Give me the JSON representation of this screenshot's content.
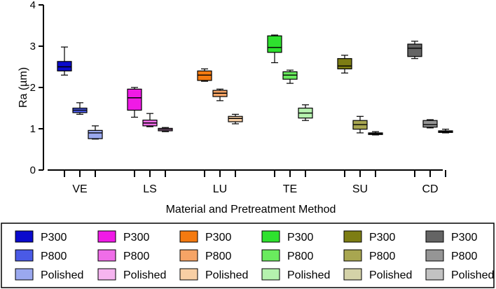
{
  "chart_data": {
    "type": "boxplot",
    "ylabel": "Ra (µm)",
    "xlabel": "Material and Pretreatment Method",
    "ylim": [
      0,
      4
    ],
    "yticks": [
      0,
      1,
      2,
      3,
      4
    ],
    "grid": false,
    "legend_position": "bottom",
    "groups": [
      {
        "label": "VE",
        "boxes": [
          {
            "series": "P300",
            "min": 2.3,
            "q1": 2.4,
            "median": 2.5,
            "q3": 2.63,
            "max": 2.98,
            "color": "#0a0acd"
          },
          {
            "series": "P800",
            "min": 1.35,
            "q1": 1.39,
            "median": 1.45,
            "q3": 1.5,
            "max": 1.63,
            "color": "#4a5ae6"
          },
          {
            "series": "Polished",
            "min": 0.75,
            "q1": 0.76,
            "median": 0.9,
            "q3": 0.96,
            "max": 1.07,
            "color": "#9aa8ef"
          }
        ]
      },
      {
        "label": "LS",
        "boxes": [
          {
            "series": "P300",
            "min": 1.28,
            "q1": 1.45,
            "median": 1.75,
            "q3": 1.96,
            "max": 2.0,
            "color": "#f01ae6"
          },
          {
            "series": "P800",
            "min": 1.05,
            "q1": 1.07,
            "median": 1.14,
            "q3": 1.21,
            "max": 1.37,
            "color": "#ef6de8"
          },
          {
            "series": "Polished",
            "min": 0.93,
            "q1": 0.95,
            "median": 0.98,
            "q3": 1.01,
            "max": 1.03,
            "color": "#f5b4ef"
          }
        ]
      },
      {
        "label": "LU",
        "boxes": [
          {
            "series": "P300",
            "min": 2.15,
            "q1": 2.17,
            "median": 2.3,
            "q3": 2.4,
            "max": 2.45,
            "color": "#f47a10"
          },
          {
            "series": "P800",
            "min": 1.68,
            "q1": 1.78,
            "median": 1.86,
            "q3": 1.93,
            "max": 1.96,
            "color": "#f6a466"
          },
          {
            "series": "Polished",
            "min": 1.12,
            "q1": 1.17,
            "median": 1.25,
            "q3": 1.3,
            "max": 1.35,
            "color": "#f8cfa4"
          }
        ]
      },
      {
        "label": "TE",
        "boxes": [
          {
            "series": "P300",
            "min": 2.6,
            "q1": 2.85,
            "median": 2.97,
            "q3": 3.25,
            "max": 3.27,
            "color": "#2ee12e"
          },
          {
            "series": "P800",
            "min": 2.1,
            "q1": 2.2,
            "median": 2.3,
            "q3": 2.38,
            "max": 2.42,
            "color": "#6aeb5e"
          },
          {
            "series": "Polished",
            "min": 1.2,
            "q1": 1.26,
            "median": 1.38,
            "q3": 1.5,
            "max": 1.58,
            "color": "#b5f2ae"
          }
        ]
      },
      {
        "label": "SU",
        "boxes": [
          {
            "series": "P300",
            "min": 2.35,
            "q1": 2.45,
            "median": 2.52,
            "q3": 2.7,
            "max": 2.78,
            "color": "#7d7d14"
          },
          {
            "series": "P800",
            "min": 0.9,
            "q1": 0.99,
            "median": 1.1,
            "q3": 1.2,
            "max": 1.3,
            "color": "#a8a650"
          },
          {
            "series": "Polished",
            "min": 0.85,
            "q1": 0.86,
            "median": 0.88,
            "q3": 0.9,
            "max": 0.93,
            "color": "#d4d2a8"
          }
        ]
      },
      {
        "label": "CD",
        "boxes": [
          {
            "series": "P300",
            "min": 2.7,
            "q1": 2.75,
            "median": 2.95,
            "q3": 3.05,
            "max": 3.12,
            "color": "#646464"
          },
          {
            "series": "P800",
            "min": 1.02,
            "q1": 1.04,
            "median": 1.1,
            "q3": 1.2,
            "max": 1.22,
            "color": "#959595"
          },
          {
            "series": "Polished",
            "min": 0.9,
            "q1": 0.91,
            "median": 0.93,
            "q3": 0.95,
            "max": 0.99,
            "color": "#c2c2c2"
          }
        ]
      }
    ],
    "legend": [
      [
        {
          "label": "P300",
          "color": "#0a0acd"
        },
        {
          "label": "P800",
          "color": "#4a5ae6"
        },
        {
          "label": "Polished",
          "color": "#9aa8ef"
        }
      ],
      [
        {
          "label": "P300",
          "color": "#f01ae6"
        },
        {
          "label": "P800",
          "color": "#ef6de8"
        },
        {
          "label": "Polished",
          "color": "#f5b4ef"
        }
      ],
      [
        {
          "label": "P300",
          "color": "#f47a10"
        },
        {
          "label": "P800",
          "color": "#f6a466"
        },
        {
          "label": "Polished",
          "color": "#f8cfa4"
        }
      ],
      [
        {
          "label": "P300",
          "color": "#2ee12e"
        },
        {
          "label": "P800",
          "color": "#6aeb5e"
        },
        {
          "label": "Polished",
          "color": "#b5f2ae"
        }
      ],
      [
        {
          "label": "P300",
          "color": "#7d7d14"
        },
        {
          "label": "P800",
          "color": "#a8a650"
        },
        {
          "label": "Polished",
          "color": "#d4d2a8"
        }
      ],
      [
        {
          "label": "P300",
          "color": "#646464"
        },
        {
          "label": "P800",
          "color": "#959595"
        },
        {
          "label": "Polished",
          "color": "#c2c2c2"
        }
      ]
    ]
  }
}
